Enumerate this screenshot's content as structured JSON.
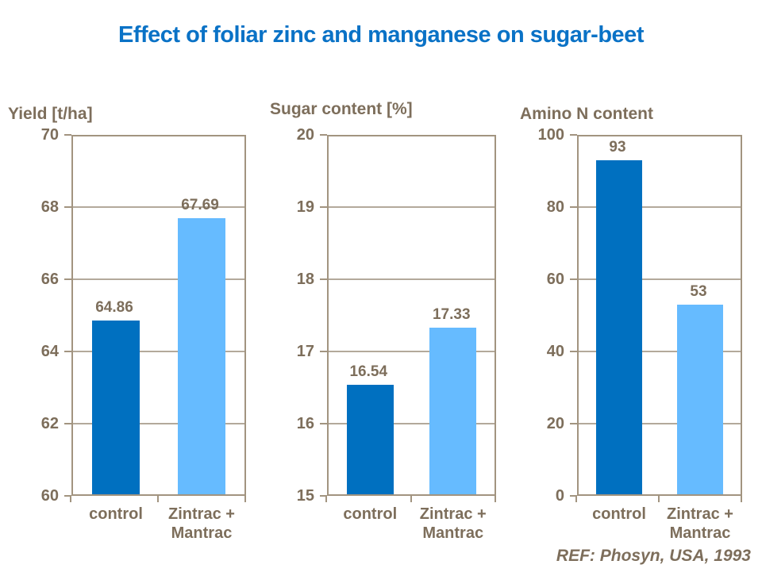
{
  "page": {
    "title": "Effect of foliar zinc and manganese on sugar-beet",
    "reference": "REF: Phosyn, USA, 1993"
  },
  "colors": {
    "title_blue": "#0a72c6",
    "bar_control": "#0070c0",
    "bar_treatment": "#66bbff",
    "axis_text_brown": "#7d6e5b",
    "gridline": "#b3a99b",
    "axis_border": "#a29480"
  },
  "chart_data": [
    {
      "type": "bar",
      "title": "Yield [t/ha]",
      "categories": [
        "control",
        "Zintrac +\nMantrac"
      ],
      "values": [
        64.86,
        67.69
      ],
      "value_labels": [
        "64.86",
        "67.69"
      ],
      "bar_colors": [
        "#0070c0",
        "#66bbff"
      ],
      "ylim": [
        60,
        70
      ],
      "yticks": [
        60,
        62,
        64,
        66,
        68,
        70
      ],
      "grid": true,
      "legend": "none"
    },
    {
      "type": "bar",
      "title": "Sugar content [%]",
      "categories": [
        "control",
        "Zintrac +\nMantrac"
      ],
      "values": [
        16.54,
        17.33
      ],
      "value_labels": [
        "16.54",
        "17.33"
      ],
      "bar_colors": [
        "#0070c0",
        "#66bbff"
      ],
      "ylim": [
        15,
        20
      ],
      "yticks": [
        15,
        16,
        17,
        18,
        19,
        20
      ],
      "grid": true,
      "legend": "none"
    },
    {
      "type": "bar",
      "title": "Amino N content",
      "categories": [
        "control",
        "Zintrac +\nMantrac"
      ],
      "values": [
        93,
        53
      ],
      "value_labels": [
        "93",
        "53"
      ],
      "bar_colors": [
        "#0070c0",
        "#66bbff"
      ],
      "ylim": [
        0,
        100
      ],
      "yticks": [
        0,
        20,
        40,
        60,
        80,
        100
      ],
      "grid": true,
      "legend": "none"
    }
  ]
}
